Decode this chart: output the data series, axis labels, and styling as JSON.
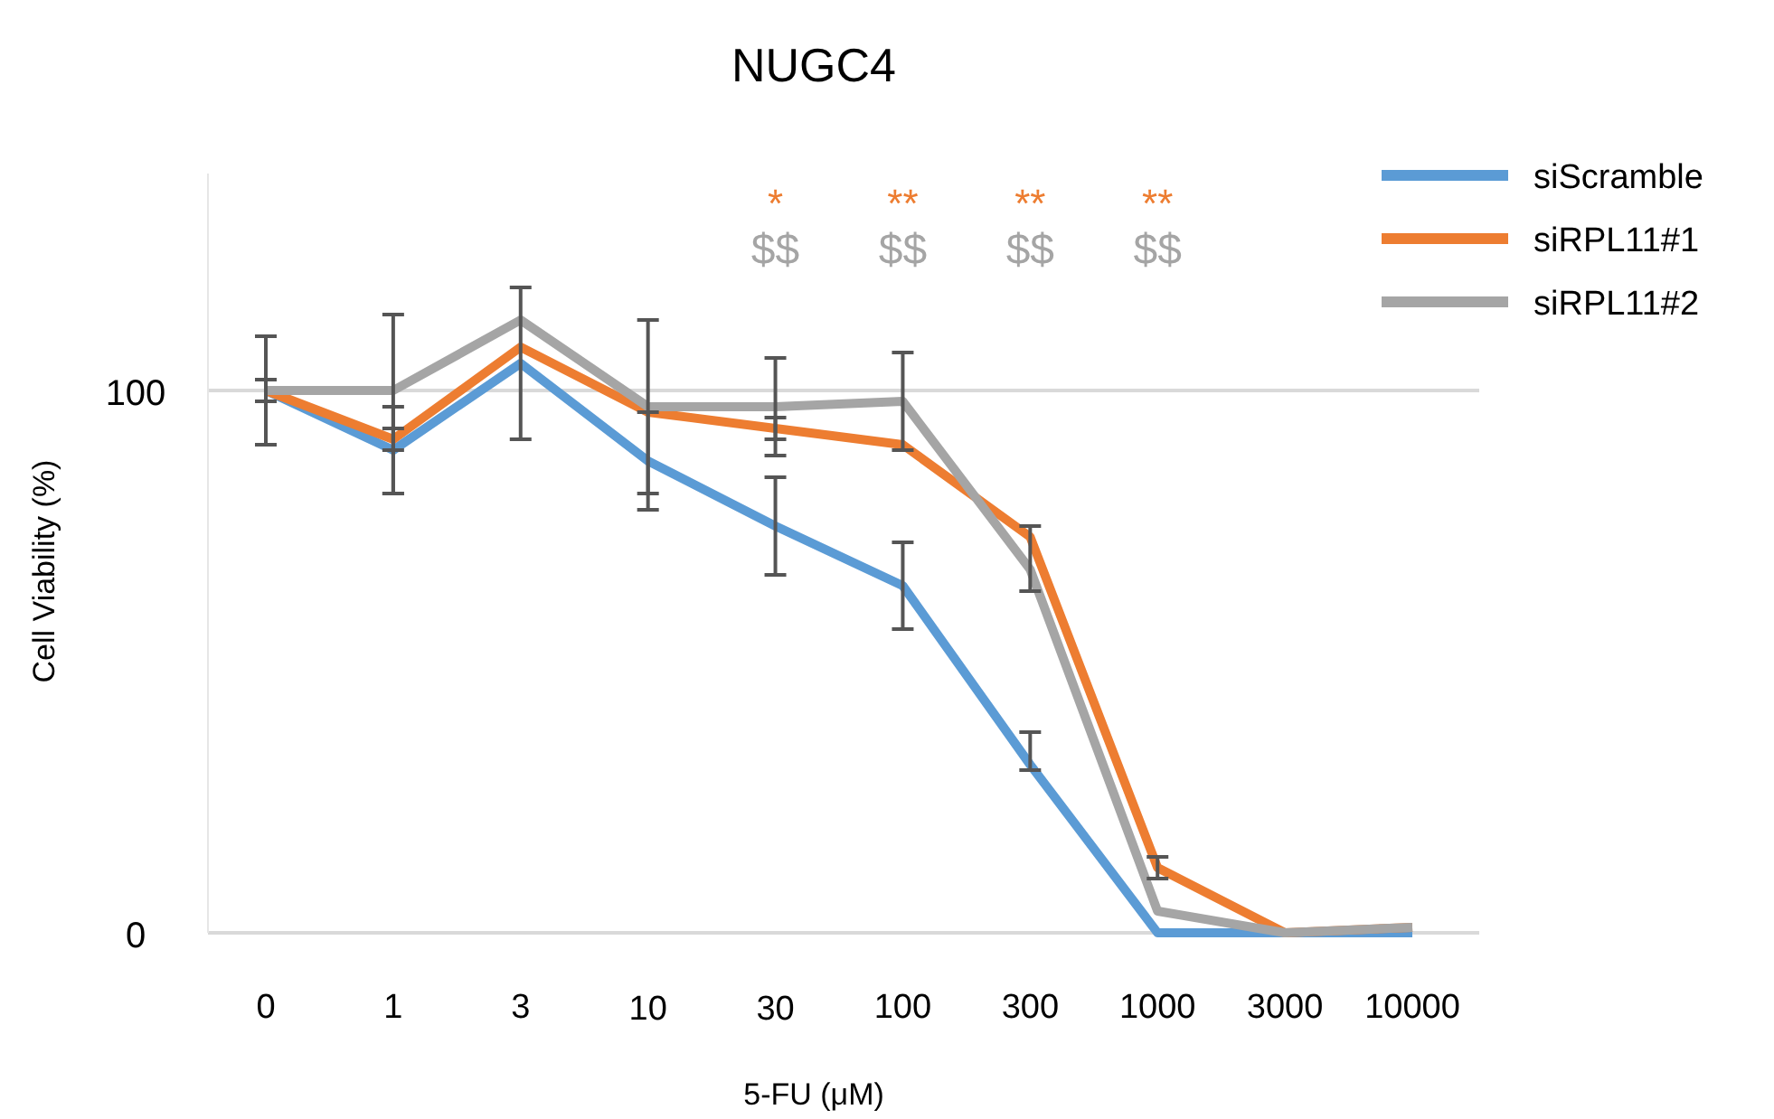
{
  "chart_data": {
    "type": "line",
    "title": "NUGC4",
    "xlabel": "5-FU (μM)",
    "ylabel": "Cell Viability (%)",
    "categories": [
      "0",
      "1",
      "3",
      "10",
      "30",
      "100",
      "300",
      "1000",
      "3000",
      "10000"
    ],
    "series": [
      {
        "name": "siScramble",
        "color": "#5b9bd5",
        "values": [
          100,
          89,
          105,
          87,
          75,
          64,
          31,
          0,
          0,
          0
        ],
        "errors": [
          2,
          8,
          14,
          9,
          9,
          8,
          [
            30,
            37
          ],
          null,
          null,
          null
        ]
      },
      {
        "name": "siRPL11#1",
        "color": "#ed7d31",
        "values": [
          100,
          91,
          108,
          96,
          93,
          90,
          73,
          12,
          0,
          1
        ],
        "errors": [
          null,
          2,
          null,
          null,
          2,
          null,
          [
            63,
            75
          ],
          2,
          null,
          null
        ]
      },
      {
        "name": "siRPL11#2",
        "color": "#a5a5a5",
        "values": [
          100,
          100,
          113,
          97,
          97,
          98,
          67,
          4,
          0,
          1
        ],
        "errors": [
          10,
          [
            81,
            114
          ],
          null,
          16,
          9,
          9,
          null,
          null,
          null,
          null
        ]
      }
    ],
    "ylim": [
      0,
      140
    ],
    "yticks": [
      0,
      100
    ],
    "grid": "y",
    "legend": "top right",
    "line_style": "solid",
    "marker": "none",
    "annotations": [
      "*",
      "$$",
      "**",
      "$$",
      "**",
      "$$",
      "**",
      "$$"
    ]
  }
}
